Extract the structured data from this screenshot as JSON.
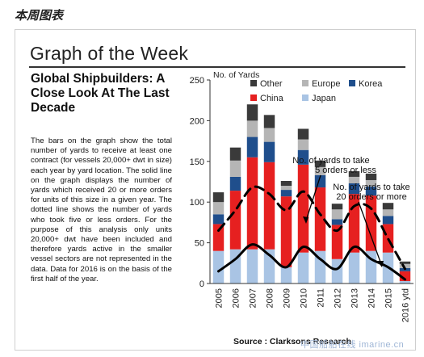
{
  "top_label": "本周图表",
  "header_title": "Graph of the Week",
  "subtitle": "Global Shipbuilders: A Close Look At The Last Decade",
  "body_text": "The bars on the graph show the total number of yards to receive at least one contract (for vessels 20,000+ dwt in size) each year by yard location. The solid line on the graph displays the number of yards which received 20 or more orders for units of this size in a given year. The dotted line shows the number of yards who took five or less orders. For the purpose of this analysis only units 20,000+ dwt have been included and therefore yards active in the smaller vessel sectors are not represented in the data. Data for 2016 is on the basis of the first half of the year.",
  "source": "Source : Clarksons Research",
  "watermark": "中国船舶在线 imarine.cn",
  "chart_data": {
    "type": "bar",
    "stacked": true,
    "ylabel": "No. of Yards",
    "ylim": [
      0,
      250
    ],
    "yticks": [
      0,
      50,
      100,
      150,
      200,
      250
    ],
    "categories": [
      "2005",
      "2006",
      "2007",
      "2008",
      "2009",
      "2010",
      "2011",
      "2012",
      "2013",
      "2014",
      "2015",
      "2016 ytd"
    ],
    "series": [
      {
        "name": "Japan",
        "color": "#a9c4e4",
        "values": [
          40,
          42,
          42,
          42,
          20,
          38,
          40,
          30,
          38,
          40,
          38,
          3
        ]
      },
      {
        "name": "China",
        "color": "#e62020",
        "values": [
          33,
          72,
          113,
          107,
          87,
          108,
          78,
          42,
          72,
          68,
          35,
          12
        ]
      },
      {
        "name": "Korea",
        "color": "#1f4e8c",
        "values": [
          12,
          17,
          25,
          25,
          8,
          18,
          15,
          7,
          13,
          11,
          10,
          4
        ]
      },
      {
        "name": "Europe",
        "color": "#b5b5b5",
        "values": [
          15,
          20,
          20,
          17,
          5,
          13,
          10,
          12,
          8,
          8,
          8,
          5
        ]
      },
      {
        "name": "Other",
        "color": "#3a3a3a",
        "values": [
          12,
          16,
          20,
          16,
          6,
          13,
          8,
          7,
          7,
          8,
          8,
          3
        ]
      }
    ],
    "lines": [
      {
        "name": "No. of yards to take 20 orders or more",
        "style": "solid",
        "values": [
          15,
          30,
          48,
          35,
          20,
          45,
          30,
          18,
          45,
          30,
          20,
          5
        ]
      },
      {
        "name": "No. of yards to take 5 orders or less",
        "style": "dashed",
        "values": [
          65,
          90,
          118,
          110,
          90,
          113,
          85,
          65,
          95,
          92,
          55,
          18
        ]
      }
    ],
    "legend": {
      "order": [
        "Other",
        "Europe",
        "Korea",
        "China",
        "Japan"
      ]
    },
    "annotations": [
      {
        "text_lines": [
          "No. of yards to take",
          "5 orders or less"
        ]
      },
      {
        "text_lines": [
          "No. of yards to take",
          "20 orders or more"
        ]
      }
    ]
  }
}
